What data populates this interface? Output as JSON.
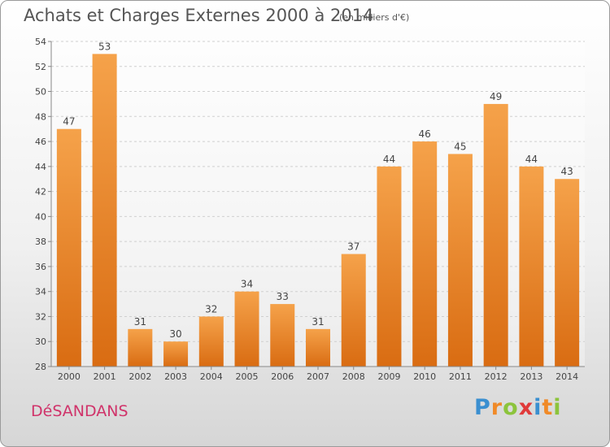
{
  "chart_data": {
    "type": "bar",
    "title": "Achats et Charges Externes 2000 à 2014",
    "subtitle": "(en milliers d'€)",
    "categories": [
      "2000",
      "2001",
      "2002",
      "2003",
      "2004",
      "2005",
      "2006",
      "2007",
      "2008",
      "2009",
      "2010",
      "2011",
      "2012",
      "2013",
      "2014"
    ],
    "values": [
      47,
      53,
      31,
      30,
      32,
      34,
      33,
      31,
      37,
      44,
      46,
      45,
      49,
      44,
      43
    ],
    "ylim": [
      28,
      54
    ],
    "yticks": [
      28,
      30,
      32,
      34,
      36,
      38,
      40,
      42,
      44,
      46,
      48,
      50,
      52,
      54
    ],
    "grid": true,
    "bar_color": "#f08a28"
  },
  "commune": "DéSANDANS",
  "logo": {
    "letters": [
      "P",
      "r",
      "o",
      "x",
      "i",
      "t",
      "i"
    ],
    "colors": [
      "#3a8fd0",
      "#f08a28",
      "#8cc43c",
      "#e03a3a",
      "#3a8fd0",
      "#f08a28",
      "#8cc43c"
    ]
  }
}
